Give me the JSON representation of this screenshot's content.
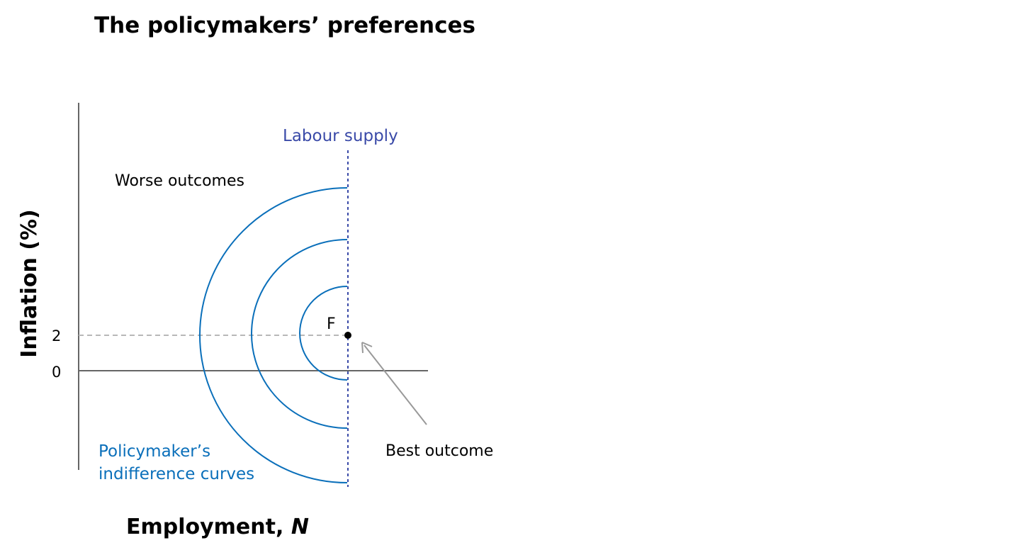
{
  "title": "The policymakers’ preferences",
  "y_axis_label": "Inflation (%)",
  "x_axis_label_main": "Employment, ",
  "x_axis_label_var": "N",
  "y_ticks": [
    "2",
    "0"
  ],
  "labels": {
    "labour_supply": "Labour supply",
    "worse_outcomes": "Worse outcomes",
    "point_f": "F",
    "best_outcome": "Best outcome",
    "curves_line1": "Policymaker’s",
    "curves_line2": "indifference curves"
  },
  "colors": {
    "curve": "#0a6fba",
    "labour_supply": "#3a4aa8",
    "axis": "#666666",
    "target_line": "#b8b8b8",
    "arrow": "#999999",
    "point": "#000000"
  }
}
